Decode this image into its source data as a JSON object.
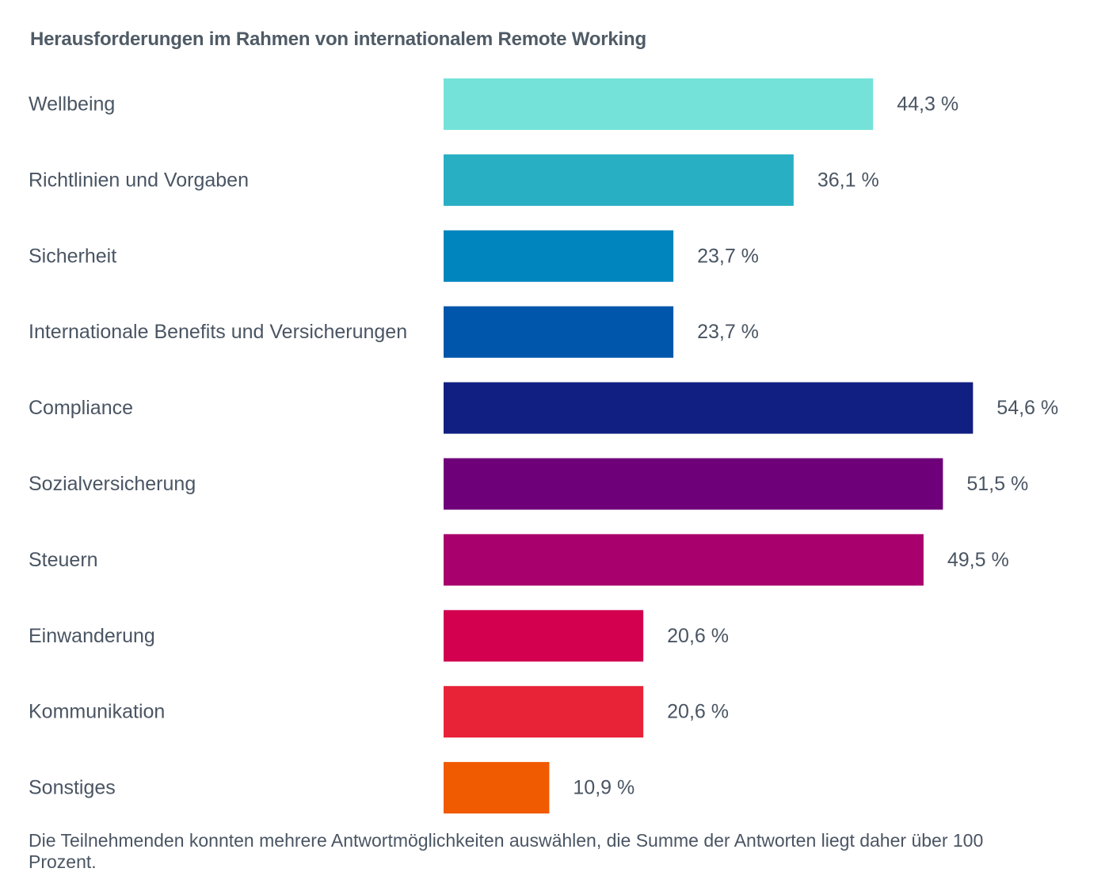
{
  "chart_data": {
    "type": "bar",
    "orientation": "horizontal",
    "title": "Herausforderungen im Rahmen von internationalem Remote Working",
    "categories": [
      "Wellbeing",
      "Richtlinien und Vorgaben",
      "Sicherheit",
      "Internationale Benefits und Versicherungen",
      "Compliance",
      "Sozialversicherung",
      "Steuern",
      "Einwanderung",
      "Kommunikation",
      "Sonstiges"
    ],
    "values": [
      44.3,
      36.1,
      23.7,
      23.7,
      54.6,
      51.5,
      49.5,
      20.6,
      20.6,
      10.9
    ],
    "value_labels": [
      "44,3 %",
      "36,1 %",
      "23,7 %",
      "23,7 %",
      "54,6 %",
      "51,5 %",
      "49,5 %",
      "20,6 %",
      "20,6 %",
      "10,9 %"
    ],
    "colors": [
      "#75E2D9",
      "#29AFC4",
      "#0085BE",
      "#0056AA",
      "#111F82",
      "#6E007A",
      "#A8006C",
      "#D2004F",
      "#E82237",
      "#F05A00"
    ],
    "xlim": [
      0,
      60
    ],
    "grid": false,
    "legend": "none",
    "note": "Die Teilnehmenden konnten mehrere Antwortmöglichkeiten auswählen, die Summe der Antworten liegt daher über 100 Prozent."
  }
}
